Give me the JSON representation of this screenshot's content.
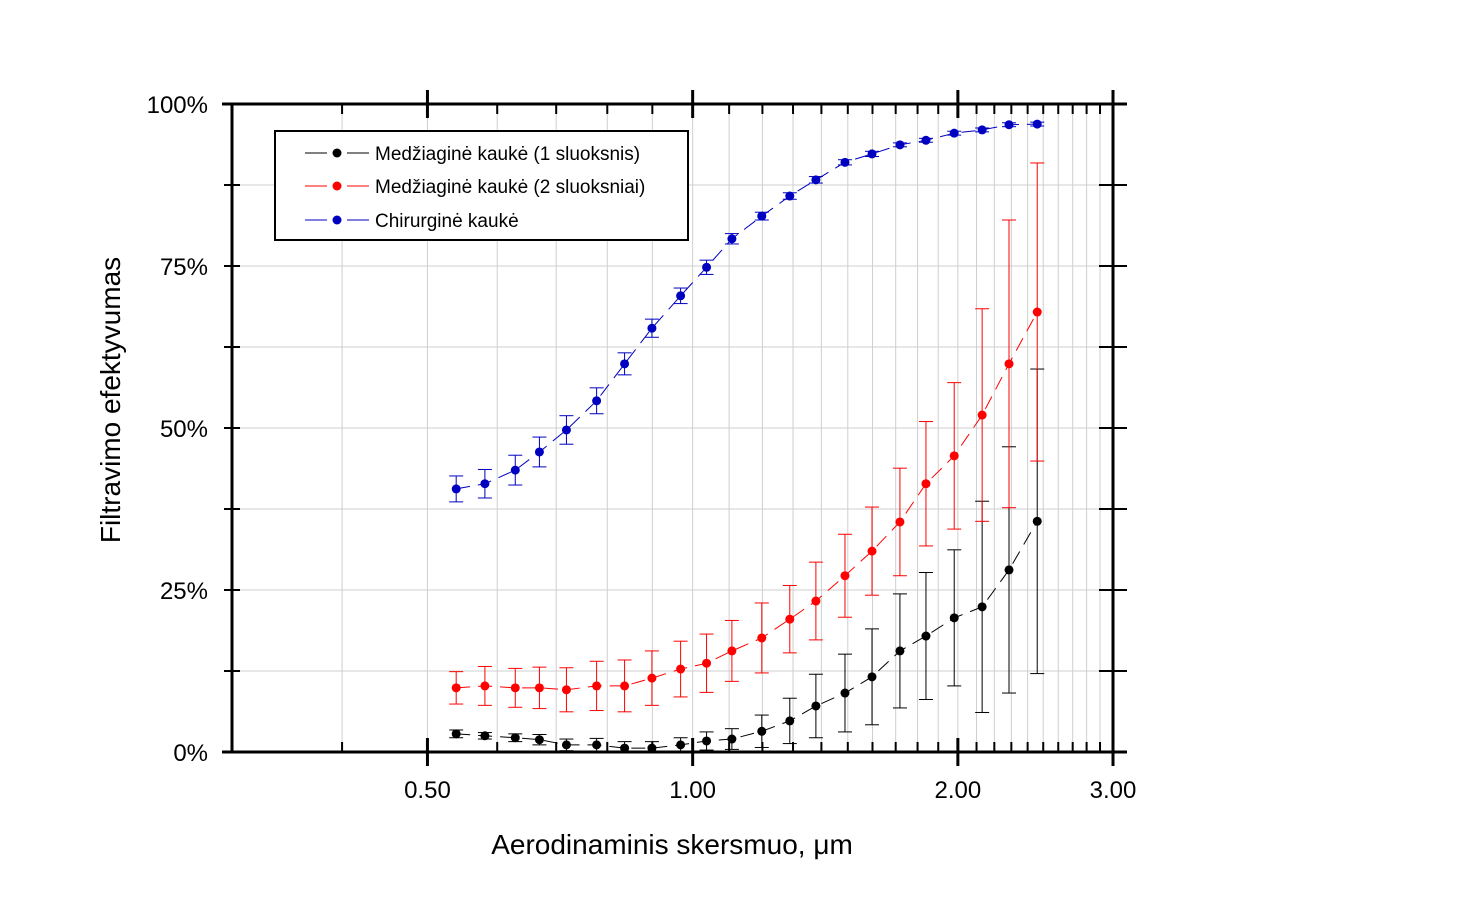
{
  "chart_data": {
    "type": "scatter",
    "title": "",
    "xlabel": "Aerodinaminis skersmuo, μm",
    "ylabel": "Filtravimo efektyvumas",
    "xscale": "log",
    "xlim": [
      0.3,
      3.0
    ],
    "ylim": [
      0,
      100
    ],
    "xticks": [
      0.5,
      1.0,
      2.0,
      3.0
    ],
    "xtick_labels": [
      "0.50",
      "1.00",
      "2.00",
      "3.00"
    ],
    "yticks": [
      0,
      25,
      50,
      75,
      100
    ],
    "ytick_labels": [
      "0%",
      "25%",
      "50%",
      "75%",
      "100%"
    ],
    "grid": true,
    "legend_position": "top-left",
    "x": [
      0.539,
      0.581,
      0.629,
      0.67,
      0.719,
      0.778,
      0.837,
      0.899,
      0.969,
      1.037,
      1.108,
      1.198,
      1.289,
      1.38,
      1.489,
      1.598,
      1.719,
      1.84,
      1.981,
      2.131,
      2.286,
      2.461
    ],
    "series": [
      {
        "name": "Medžiaginė kaukė (1 sluoksnis)",
        "color": "#000000",
        "values": [
          2.8,
          2.5,
          2.2,
          1.9,
          1.1,
          1.1,
          0.6,
          0.6,
          1.1,
          1.7,
          2.0,
          3.2,
          4.8,
          7.1,
          9.1,
          11.6,
          15.6,
          17.9,
          20.7,
          22.4,
          28.1,
          35.6
        ],
        "errors": [
          0.6,
          0.5,
          0.6,
          0.8,
          0.9,
          1.0,
          1.0,
          1.0,
          1.1,
          1.4,
          1.6,
          2.5,
          3.5,
          4.9,
          6.0,
          7.4,
          8.8,
          9.8,
          10.5,
          16.3,
          19.0,
          23.5
        ]
      },
      {
        "name": "Medžiaginė kaukė (2 sluoksniai)",
        "color": "#ff0000",
        "values": [
          9.9,
          10.2,
          9.9,
          9.9,
          9.6,
          10.2,
          10.2,
          11.4,
          12.8,
          13.7,
          15.6,
          17.6,
          20.5,
          23.3,
          27.2,
          31.0,
          35.5,
          41.4,
          45.7,
          52.0,
          59.9,
          67.9
        ],
        "errors": [
          2.5,
          3.0,
          3.0,
          3.2,
          3.4,
          3.8,
          4.0,
          4.2,
          4.3,
          4.5,
          4.7,
          5.4,
          5.2,
          6.0,
          6.4,
          6.8,
          8.3,
          9.6,
          11.3,
          16.4,
          22.2,
          23.0
        ]
      },
      {
        "name": "Chirurginė kaukė",
        "color": "#0000c0",
        "values": [
          40.6,
          41.4,
          43.5,
          46.3,
          49.7,
          54.2,
          59.9,
          65.4,
          70.4,
          74.8,
          79.2,
          82.7,
          85.8,
          88.3,
          91.0,
          92.3,
          93.7,
          94.4,
          95.5,
          96.0,
          96.8,
          96.9
        ],
        "errors": [
          2.0,
          2.2,
          2.3,
          2.3,
          2.2,
          2.0,
          1.7,
          1.4,
          1.2,
          1.1,
          0.8,
          0.6,
          0.5,
          0.5,
          0.4,
          0.4,
          0.3,
          0.3,
          0.3,
          0.3,
          0.3,
          0.3
        ]
      }
    ]
  }
}
